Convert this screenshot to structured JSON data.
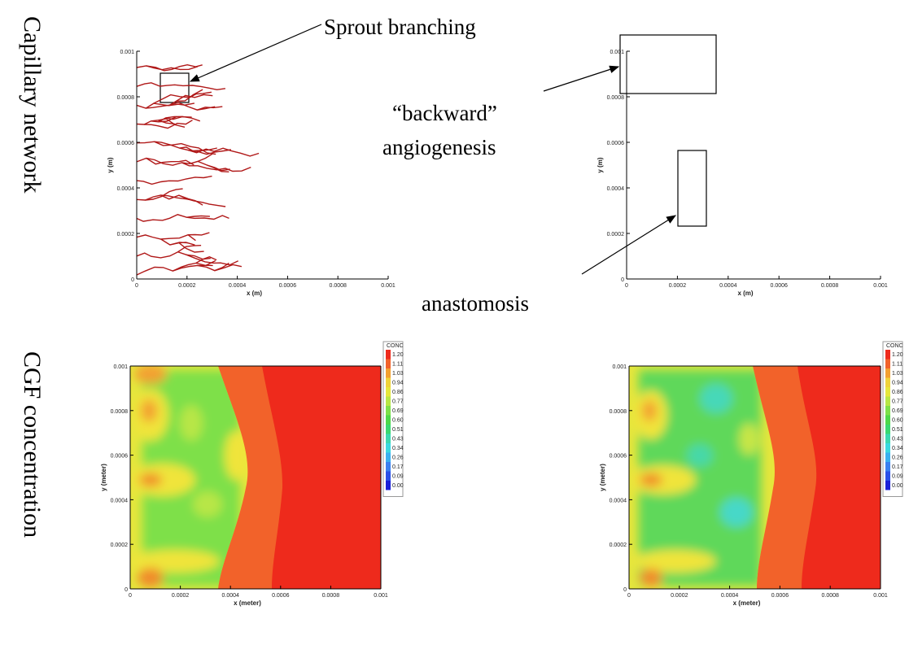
{
  "row_labels": [
    "Capillary network",
    "CGF concentration"
  ],
  "annotations": {
    "sprout": "Sprout branching",
    "backward": "“backward”",
    "angiogenesis": "angiogenesis",
    "anastomosis": "anastomosis"
  },
  "panels": [
    {
      "x_label": "x (m)",
      "y_label": "y (m)",
      "xticks": [
        "0",
        "0.0002",
        "0.0004",
        "0.0006",
        "0.0008",
        "0.001"
      ],
      "yticks": [
        "0",
        "0.0002",
        "0.0004",
        "0.0006",
        "0.0008",
        "0.001"
      ]
    },
    {
      "x_label": "x (m)",
      "y_label": "y (m)",
      "xticks": [
        "0",
        "0.0002",
        "0.0004",
        "0.0006",
        "0.0008",
        "0.001"
      ],
      "yticks": [
        "0",
        "0.0002",
        "0.0004",
        "0.0006",
        "0.0008",
        "0.001"
      ]
    },
    {
      "x_label": "x (meter)",
      "y_label": "y (meter)",
      "xticks": [
        "0",
        "0.0002",
        "0.0004",
        "0.0006",
        "0.0008",
        "0.001"
      ],
      "yticks": [
        "0",
        "0.0002",
        "0.0004",
        "0.0006",
        "0.0008",
        "0.001"
      ],
      "legend": {
        "title": "CONC",
        "levels": [
          "1.20",
          "1.11",
          "1.03",
          "0.94",
          "0.86",
          "0.77",
          "0.69",
          "0.60",
          "0.51",
          "0.43",
          "0.34",
          "0.26",
          "0.17",
          "0.09",
          "0.00"
        ]
      }
    },
    {
      "x_label": "x (meter)",
      "y_label": "y (meter)",
      "xticks": [
        "0",
        "0.0002",
        "0.0004",
        "0.0006",
        "0.0008",
        "0.001"
      ],
      "yticks": [
        "0",
        "0.0002",
        "0.0004",
        "0.0006",
        "0.0008",
        "0.001"
      ],
      "legend": {
        "title": "CONC",
        "levels": [
          "1.20",
          "1.11",
          "1.03",
          "0.94",
          "0.86",
          "0.77",
          "0.69",
          "0.60",
          "0.51",
          "0.43",
          "0.34",
          "0.26",
          "0.17",
          "0.09",
          "0.00"
        ]
      }
    }
  ]
}
